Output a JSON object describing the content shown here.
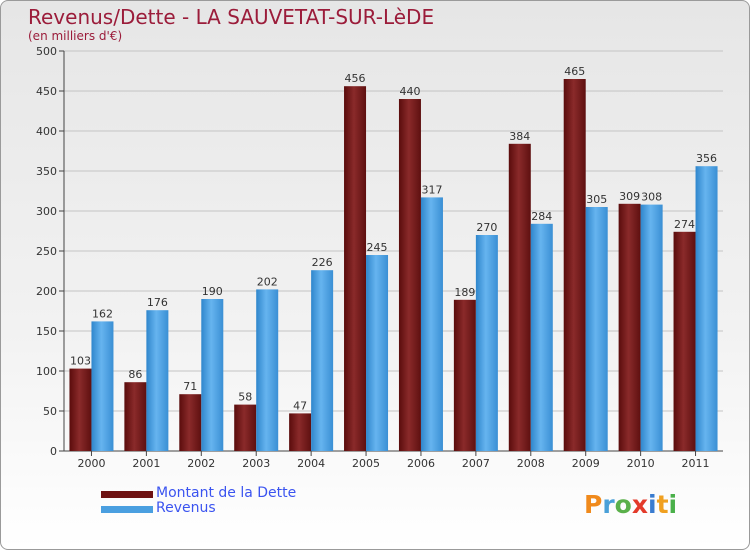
{
  "header": {
    "title": "Revenus/Dette - LA SAUVETAT-SUR-LèDE",
    "subtitle": "(en milliers d'€)"
  },
  "colors": {
    "debt": "#6e1212",
    "revenue": "#4a9fe0",
    "title": "#9b1c3a",
    "legend_text": "#3b54f0"
  },
  "legend": {
    "debt_label": "Montant de la Dette",
    "revenue_label": "Revenus"
  },
  "logo": {
    "letters": [
      "P",
      "r",
      "o",
      "x",
      "i",
      "t",
      "i"
    ],
    "colors": [
      "#f08a1c",
      "#4aa0d8",
      "#5ab04a",
      "#e33a2a",
      "#3a7cd0",
      "#f0a020",
      "#4ab04a"
    ]
  },
  "chart_data": {
    "type": "bar",
    "categories": [
      "2000",
      "2001",
      "2002",
      "2003",
      "2004",
      "2005",
      "2006",
      "2007",
      "2008",
      "2009",
      "2010",
      "2011"
    ],
    "series": [
      {
        "name": "Montant de la Dette",
        "values": [
          103,
          86,
          71,
          58,
          47,
          456,
          440,
          189,
          384,
          465,
          309,
          274
        ]
      },
      {
        "name": "Revenus",
        "values": [
          162,
          176,
          190,
          202,
          226,
          245,
          317,
          270,
          284,
          305,
          308,
          356
        ]
      }
    ],
    "ylim": [
      0,
      500
    ],
    "yticks": [
      0,
      50,
      100,
      150,
      200,
      250,
      300,
      350,
      400,
      450,
      500
    ],
    "grid": true
  }
}
